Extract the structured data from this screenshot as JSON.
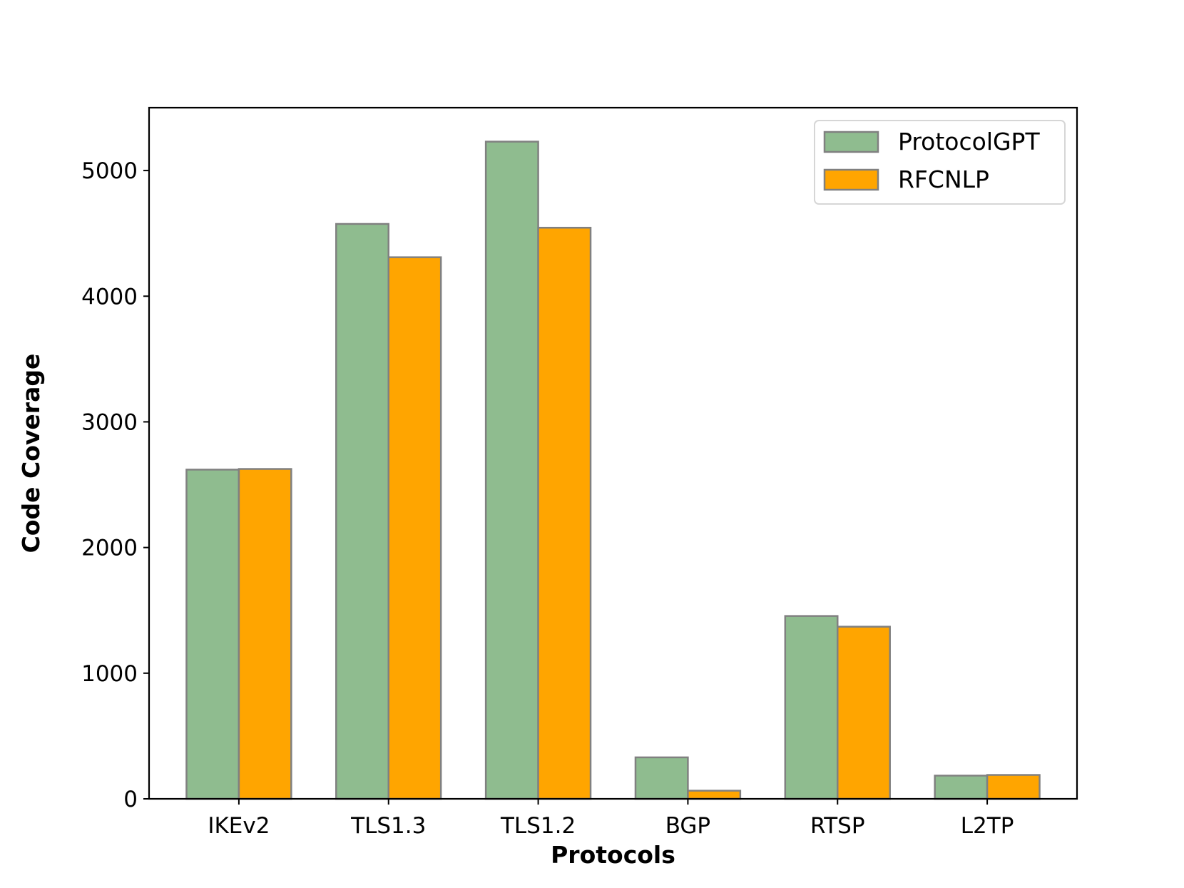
{
  "chart_data": {
    "type": "bar",
    "title": "",
    "xlabel": "Protocols",
    "ylabel": "Code Coverage",
    "categories": [
      "IKEv2",
      "TLS1.3",
      "TLS1.2",
      "BGP",
      "RTSP",
      "L2TP"
    ],
    "series": [
      {
        "name": "ProtocolGPT",
        "values": [
          2620,
          4575,
          5230,
          330,
          1455,
          185
        ],
        "color": "#8fbc8f"
      },
      {
        "name": "RFCNLP",
        "values": [
          2625,
          4310,
          4545,
          65,
          1370,
          190
        ],
        "color": "#ffa500"
      }
    ],
    "bar_edge_color": "#808080",
    "ylim": [
      0,
      5500
    ],
    "yticks": [
      0,
      1000,
      2000,
      3000,
      4000,
      5000
    ],
    "grid": false,
    "legend_position": "top-right"
  }
}
